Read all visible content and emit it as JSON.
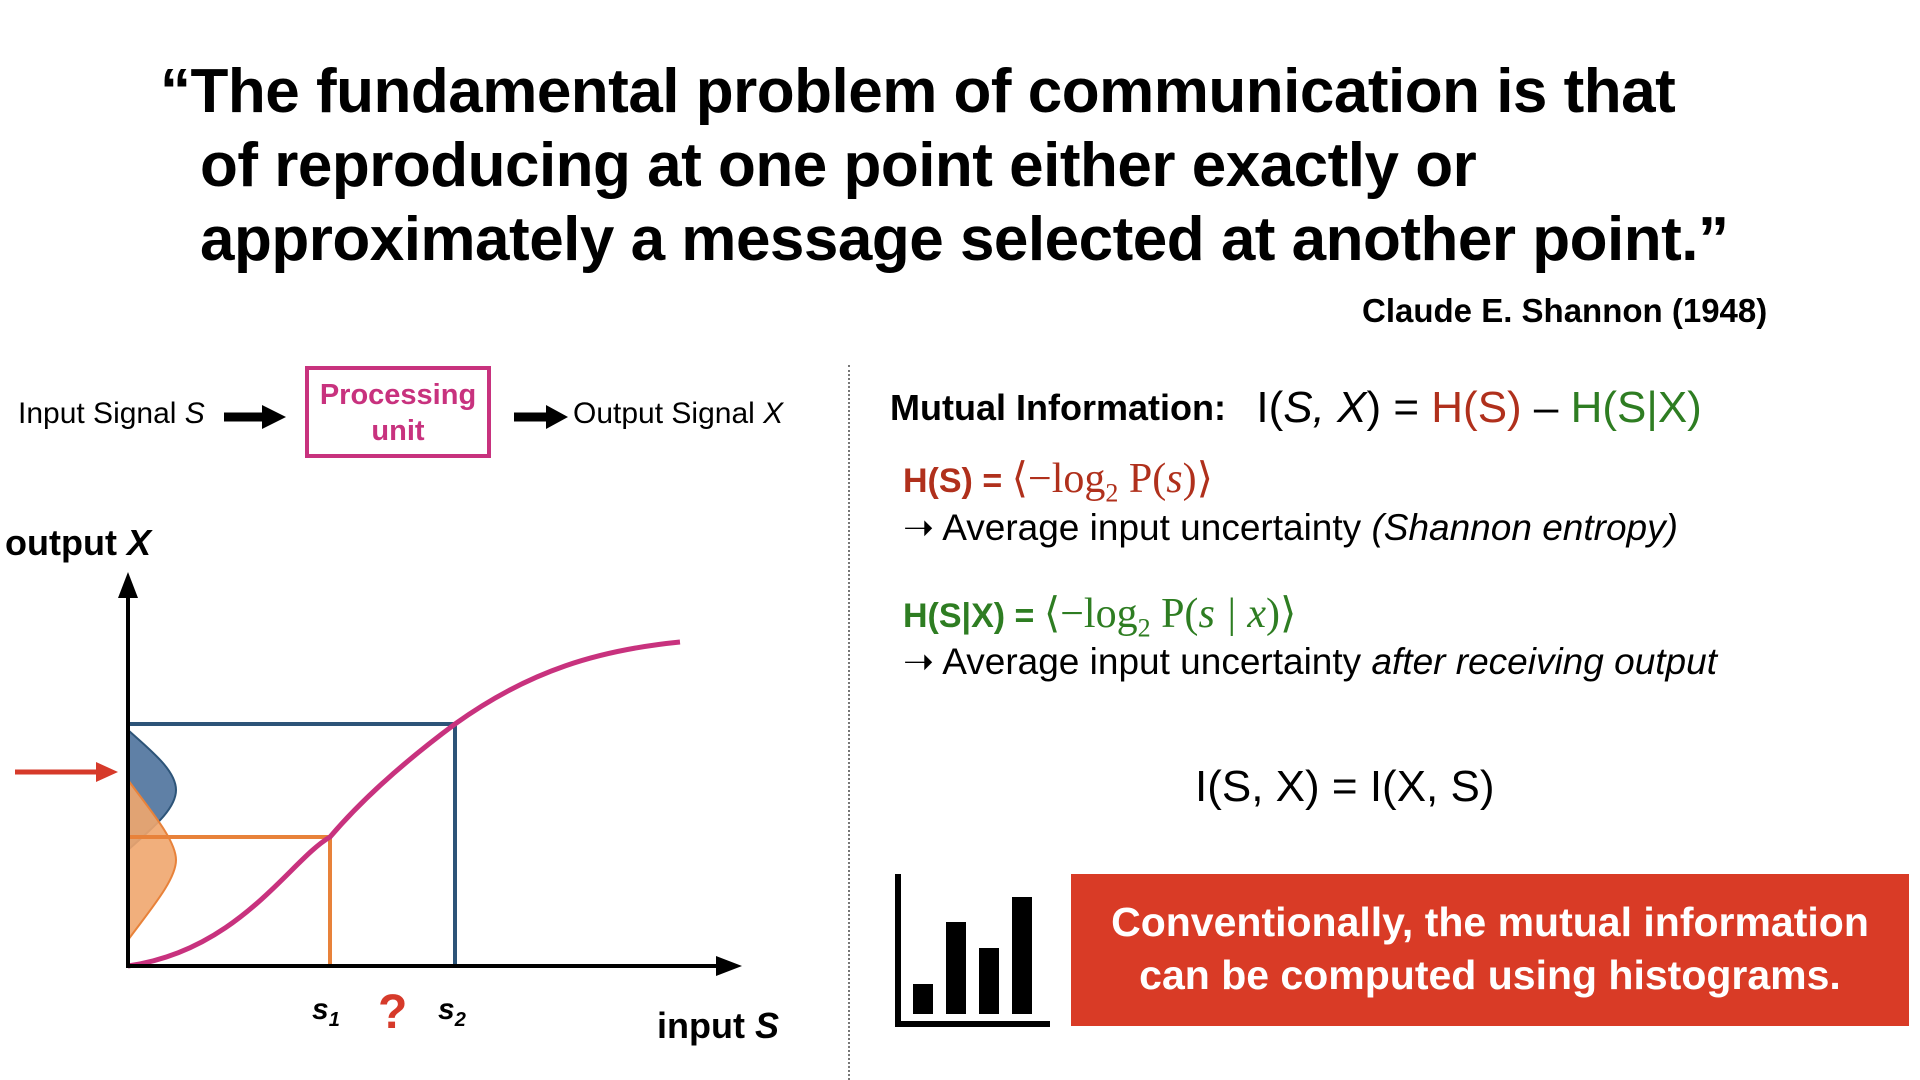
{
  "quote": {
    "lines": [
      "“The fundamental problem of communication is that",
      "of reproducing at one point either exactly or",
      "approximately a message selected at another point.”"
    ],
    "attribution": "Claude E. Shannon (1948)"
  },
  "diagram": {
    "input_signal_label": "Input Signal",
    "input_signal_var": "S",
    "processing_unit_line1": "Processing",
    "processing_unit_line2": "unit",
    "output_signal_label": "Output Signal",
    "output_signal_var": "X",
    "y_axis_label": "output",
    "y_axis_var": "X",
    "x_axis_label": "input",
    "x_axis_var": "S",
    "tick_s1_base": "s",
    "tick_s1_sub": "1",
    "tick_s2_base": "s",
    "tick_s2_sub": "2",
    "question_mark": "?",
    "colors": {
      "curve": "#c8327e",
      "blue": "#2d5478",
      "blue_fill": "#5f80a6",
      "orange": "#e8823a",
      "orange_fill": "#f0a66e",
      "arrow": "#d63a2a"
    }
  },
  "mutual_information": {
    "label": "Mutual Information:",
    "eq_I": "I(",
    "eq_S": "S",
    "eq_comma": ", ",
    "eq_X": "X",
    "eq_close": ") = ",
    "eq_HS": "H(S)",
    "eq_minus": " – ",
    "eq_HSX": "H(S|X)",
    "entropy_lhs": "H(S) = ",
    "entropy_rhs_a": "⟨−log",
    "entropy_rhs_sub": "2",
    "entropy_rhs_b": " P(",
    "entropy_rhs_var": "s",
    "entropy_rhs_c": ")⟩",
    "entropy_desc": "➝ Average input uncertainty ",
    "entropy_desc_italic": "(Shannon entropy)",
    "cond_lhs": "H(S|X) = ",
    "cond_rhs_a": "⟨−log",
    "cond_rhs_sub": "2",
    "cond_rhs_b": " P(",
    "cond_rhs_var": "s | x",
    "cond_rhs_c": ")⟩",
    "cond_desc": "➝ Average input uncertainty ",
    "cond_desc_italic": "after receiving output",
    "symmetry": "I(S, X) = I(X, S)",
    "colors": {
      "entropy": "#b0301c",
      "conditional": "#2e7d22"
    }
  },
  "callout": {
    "line1": "Conventionally, the mutual information",
    "line2": "can be computed using histograms.",
    "color": "#d93b26"
  },
  "histogram_icon": {
    "name": "bar-chart-icon"
  }
}
